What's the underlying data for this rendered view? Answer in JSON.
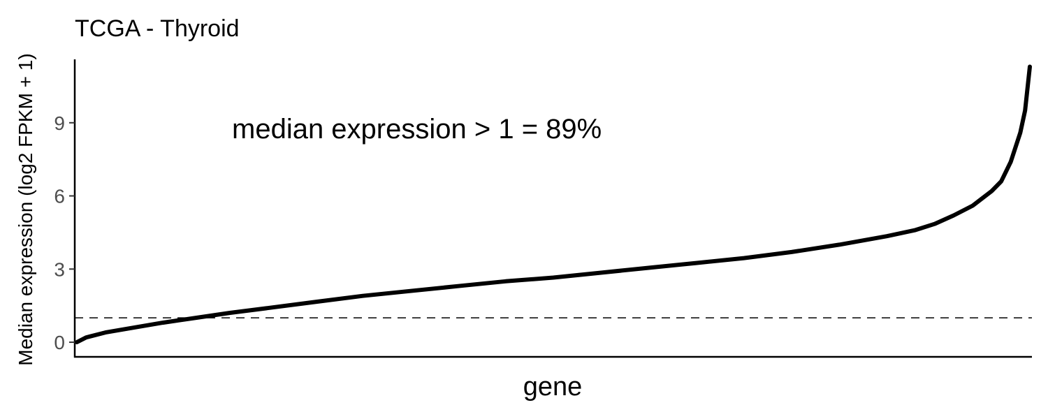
{
  "chart_data": {
    "type": "line",
    "title": "TCGA - Thyroid",
    "xlabel": "gene",
    "ylabel": "Median expression (log2 FPKM + 1)",
    "ylim": [
      -0.6,
      11.6
    ],
    "y_ticks": [
      0,
      3,
      6,
      9
    ],
    "y_tick_labels": [
      "0",
      "3",
      "6",
      "9"
    ],
    "x_ticks": [],
    "grid": false,
    "legend": "none",
    "reference_line": {
      "y": 1,
      "style": "dashed"
    },
    "annotation": "median expression > 1 = 89%",
    "series": [
      {
        "x": [
          0,
          0.01,
          0.03,
          0.06,
          0.09,
          0.125,
          0.16,
          0.2,
          0.25,
          0.3,
          0.35,
          0.4,
          0.45,
          0.5,
          0.55,
          0.6,
          0.65,
          0.7,
          0.75,
          0.8,
          0.85,
          0.88,
          0.9,
          0.92,
          0.94,
          0.96,
          0.97,
          0.98,
          0.99,
          0.995,
          1.0
        ],
        "y": [
          0.0,
          0.2,
          0.4,
          0.6,
          0.8,
          1.0,
          1.2,
          1.4,
          1.65,
          1.9,
          2.1,
          2.3,
          2.5,
          2.65,
          2.85,
          3.05,
          3.25,
          3.45,
          3.7,
          4.0,
          4.35,
          4.6,
          4.85,
          5.2,
          5.6,
          6.2,
          6.6,
          7.4,
          8.6,
          9.5,
          11.3
        ],
        "color": "#000000"
      }
    ]
  }
}
